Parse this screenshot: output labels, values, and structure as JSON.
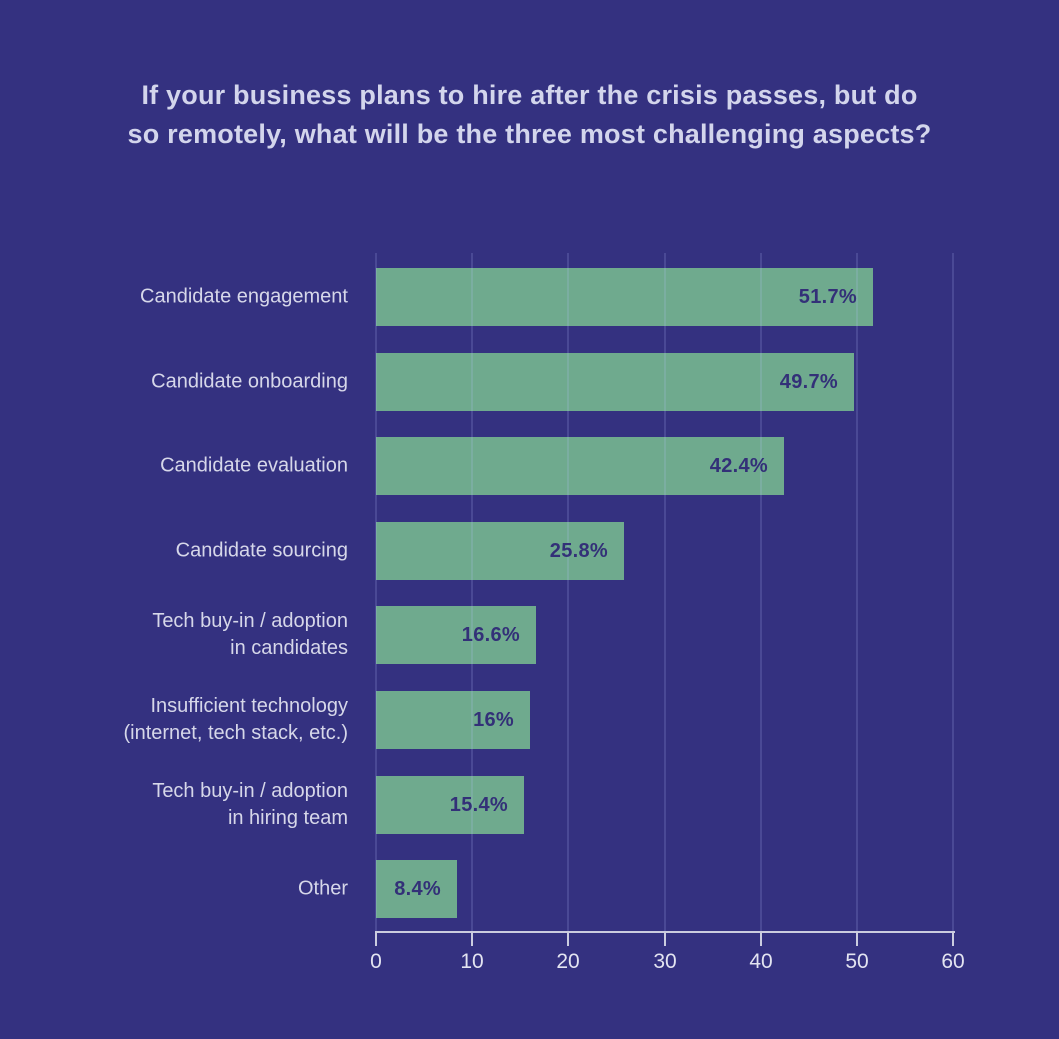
{
  "title": {
    "line1": "If your business plans to hire after the crisis passes, but do",
    "line2": "so remotely, what will be the three most challenging aspects?"
  },
  "chart_data": {
    "type": "bar",
    "orientation": "horizontal",
    "title": "If your business plans to hire after the crisis passes, but do so remotely, what will be the three most challenging aspects?",
    "categories": [
      "Candidate engagement",
      "Candidate onboarding",
      "Candidate evaluation",
      "Candidate sourcing",
      "Tech buy-in / adoption\nin candidates",
      "Insufficient technology\n(internet, tech stack, etc.)",
      "Tech buy-in / adoption\nin hiring team",
      "Other"
    ],
    "values": [
      51.7,
      49.7,
      42.4,
      25.8,
      16.6,
      16,
      15.4,
      8.4
    ],
    "value_labels": [
      "51.7%",
      "49.7%",
      "42.4%",
      "25.8%",
      "16.6%",
      "16%",
      "15.4%",
      "8.4%"
    ],
    "xlabel": "",
    "ylabel": "",
    "xlim": [
      0,
      60
    ],
    "x_ticks": [
      0,
      10,
      20,
      30,
      40,
      50,
      60
    ],
    "grid": "vertical",
    "legend": "none",
    "colors": {
      "background": "#343180",
      "bar": "#6faa8e",
      "gridline": "rgba(185,195,255,0.17)",
      "category_label": "#d6d7e9",
      "value_label": "#333078",
      "axis": "#cbccdf",
      "tick_label": "#e3e4f1",
      "title": "#d3d5ec"
    }
  }
}
